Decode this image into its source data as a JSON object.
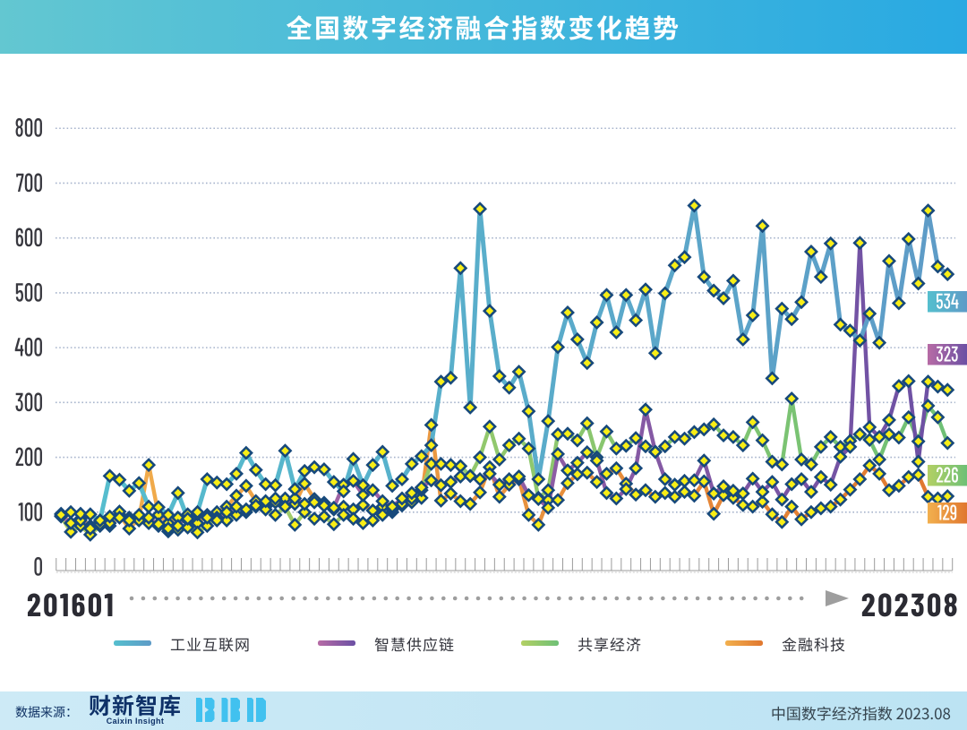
{
  "title": "全国数字经济融合指数变化趋势",
  "chart_data": {
    "type": "line",
    "x": [
      "201601",
      "201602",
      "201603",
      "201604",
      "201605",
      "201606",
      "201607",
      "201608",
      "201609",
      "201610",
      "201611",
      "201612",
      "201701",
      "201702",
      "201703",
      "201704",
      "201705",
      "201706",
      "201707",
      "201708",
      "201709",
      "201710",
      "201711",
      "201712",
      "201801",
      "201802",
      "201803",
      "201804",
      "201805",
      "201806",
      "201807",
      "201808",
      "201809",
      "201810",
      "201811",
      "201812",
      "201901",
      "201902",
      "201903",
      "201904",
      "201905",
      "201906",
      "201907",
      "201908",
      "201909",
      "201910",
      "201911",
      "201912",
      "202001",
      "202002",
      "202003",
      "202004",
      "202005",
      "202006",
      "202007",
      "202008",
      "202009",
      "202010",
      "202011",
      "202012",
      "202101",
      "202102",
      "202103",
      "202104",
      "202105",
      "202106",
      "202107",
      "202108",
      "202109",
      "202110",
      "202111",
      "202112",
      "202201",
      "202202",
      "202203",
      "202204",
      "202205",
      "202206",
      "202207",
      "202208",
      "202209",
      "202210",
      "202211",
      "202212",
      "202301",
      "202302",
      "202303",
      "202304",
      "202305",
      "202306",
      "202307",
      "202308"
    ],
    "x_start_label": "201601",
    "x_end_label": "202308",
    "ylim": [
      0,
      800
    ],
    "y_ticks": [
      0,
      100,
      200,
      300,
      400,
      500,
      600,
      700,
      800
    ],
    "grid": "dotted-horizontal",
    "legend_position": "bottom",
    "series": [
      {
        "name": "工业互联网",
        "values": [
          95,
          100,
          97,
          96,
          85,
          166,
          159,
          139,
          153,
          110,
          109,
          95,
          135,
          88,
          100,
          160,
          154,
          151,
          170,
          208,
          177,
          151,
          149,
          212,
          142,
          175,
          182,
          178,
          155,
          138,
          197,
          149,
          186,
          210,
          148,
          160,
          188,
          202,
          222,
          338,
          345,
          545,
          291,
          653,
          467,
          348,
          327,
          356,
          284,
          160,
          266,
          401,
          464,
          415,
          372,
          446,
          496,
          428,
          496,
          450,
          506,
          390,
          499,
          550,
          565,
          659,
          529,
          504,
          490,
          522,
          415,
          459,
          622,
          344,
          471,
          452,
          483,
          575,
          529,
          590,
          442,
          431,
          413,
          462,
          409,
          558,
          481,
          598,
          517,
          650,
          548,
          534
        ],
        "color_start": "#55bfce",
        "color_end": "#5e9bc7",
        "end_label": "534"
      },
      {
        "name": "智慧供应链",
        "values": [
          93,
          80,
          85,
          70,
          78,
          92,
          90,
          85,
          95,
          90,
          78,
          70,
          75,
          96,
          96,
          90,
          85,
          100,
          110,
          105,
          112,
          120,
          125,
          110,
          125,
          115,
          118,
          112,
          108,
          150,
          157,
          131,
          140,
          120,
          110,
          125,
          135,
          145,
          158,
          149,
          155,
          165,
          166,
          160,
          170,
          150,
          160,
          165,
          131,
          124,
          108,
          206,
          176,
          190,
          209,
          194,
          135,
          125,
          142,
          180,
          287,
          210,
          160,
          150,
          157,
          158,
          194,
          134,
          147,
          139,
          134,
          161,
          137,
          155,
          123,
          151,
          160,
          137,
          164,
          150,
          201,
          219,
          591,
          255,
          237,
          268,
          330,
          339,
          192,
          338,
          329,
          323
        ],
        "color_start": "#b76ba5",
        "color_end": "#6b50a4",
        "end_label": "323"
      },
      {
        "name": "共享经济",
        "values": [
          92,
          64,
          75,
          59,
          75,
          80,
          101,
          90,
          85,
          80,
          75,
          65,
          68,
          72,
          63,
          75,
          90,
          85,
          95,
          100,
          110,
          105,
          95,
          110,
          77,
          100,
          88,
          92,
          78,
          95,
          88,
          80,
          85,
          95,
          105,
          115,
          125,
          140,
          188,
          188,
          186,
          184,
          166,
          200,
          256,
          196,
          222,
          234,
          216,
          126,
          140,
          242,
          243,
          231,
          262,
          200,
          247,
          216,
          221,
          235,
          220,
          210,
          220,
          237,
          234,
          246,
          251,
          260,
          240,
          237,
          222,
          264,
          231,
          192,
          187,
          307,
          196,
          187,
          219,
          237,
          219,
          230,
          242,
          232,
          196,
          242,
          236,
          273,
          229,
          294,
          273,
          226
        ],
        "color_start": "#b3d064",
        "color_end": "#6ec076",
        "end_label": "226"
      },
      {
        "name": "金融科技",
        "values": [
          97,
          80,
          88,
          75,
          82,
          75,
          95,
          70,
          88,
          186,
          95,
          80,
          90,
          85,
          80,
          95,
          100,
          110,
          130,
          148,
          120,
          110,
          118,
          125,
          115,
          152,
          124,
          117,
          105,
          110,
          105,
          113,
          103,
          110,
          100,
          112,
          118,
          126,
          259,
          121,
          134,
          120,
          115,
          136,
          182,
          128,
          150,
          160,
          95,
          77,
          122,
          122,
          153,
          169,
          172,
          155,
          170,
          180,
          152,
          132,
          140,
          128,
          135,
          128,
          137,
          130,
          156,
          97,
          131,
          126,
          113,
          110,
          119,
          96,
          82,
          110,
          87,
          100,
          107,
          110,
          123,
          141,
          160,
          185,
          170,
          140,
          148,
          164,
          168,
          128,
          125,
          129
        ],
        "color_start": "#f2b04e",
        "color_end": "#e0772f",
        "end_label": "129"
      }
    ],
    "marker": {
      "shape": "diamond",
      "fill": "#f8ee16",
      "stroke": "#17497b"
    }
  },
  "footer": {
    "source_label": "数据来源：",
    "source_logo": "财新智库",
    "source_logo_sub": "Caixin Insight",
    "bbd_logo": "BBD",
    "right_text": "中国数字经济指数 2023.08"
  }
}
